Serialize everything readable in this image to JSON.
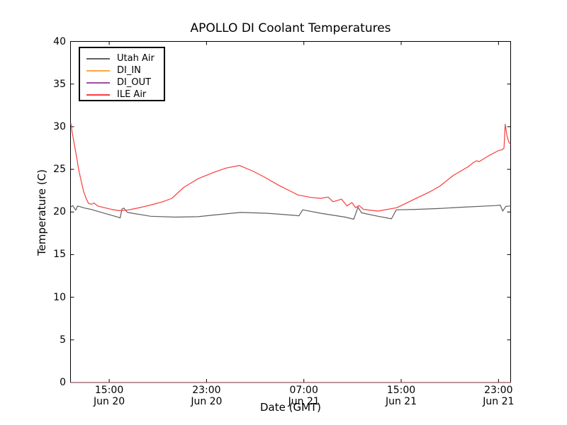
{
  "chart_data": {
    "type": "line",
    "title": "APOLLO DI Coolant Temperatures",
    "xlabel": "Date (GMT)",
    "ylabel": "Temperature (C)",
    "x_unit": "hours since Jun 20 00:00 GMT",
    "x_range": [
      11.82,
      48.0
    ],
    "ylim": [
      0,
      40
    ],
    "grid": false,
    "legend_position": "upper left",
    "tick_direction": "in",
    "xticks": [
      {
        "t": 15,
        "line1": "15:00",
        "line2": "Jun 20"
      },
      {
        "t": 23,
        "line1": "23:00",
        "line2": "Jun 20"
      },
      {
        "t": 31,
        "line1": "07:00",
        "line2": "Jun 21"
      },
      {
        "t": 39,
        "line1": "15:00",
        "line2": "Jun 21"
      },
      {
        "t": 47,
        "line1": "23:00",
        "line2": "Jun 21"
      }
    ],
    "yticks": [
      {
        "value": 0,
        "label": "0"
      },
      {
        "value": 5,
        "label": "5"
      },
      {
        "value": 10,
        "label": "10"
      },
      {
        "value": 15,
        "label": "15"
      },
      {
        "value": 20,
        "label": "20"
      },
      {
        "value": 25,
        "label": "25"
      },
      {
        "value": 30,
        "label": "30"
      },
      {
        "value": 35,
        "label": "35"
      },
      {
        "value": 40,
        "label": "40"
      }
    ],
    "series": [
      {
        "name": "Utah Air",
        "color": "#606060",
        "points": [
          [
            11.85,
            20.6
          ],
          [
            12.0,
            20.75
          ],
          [
            12.25,
            20.2
          ],
          [
            12.4,
            20.7
          ],
          [
            13.0,
            20.45
          ],
          [
            13.5,
            20.3
          ],
          [
            14.6,
            19.85
          ],
          [
            15.6,
            19.45
          ],
          [
            15.9,
            19.3
          ],
          [
            16.05,
            20.35
          ],
          [
            16.2,
            20.45
          ],
          [
            16.5,
            19.95
          ],
          [
            18.4,
            19.5
          ],
          [
            20.4,
            19.4
          ],
          [
            22.3,
            19.45
          ],
          [
            24.0,
            19.7
          ],
          [
            25.8,
            19.95
          ],
          [
            28.0,
            19.85
          ],
          [
            30.3,
            19.6
          ],
          [
            30.6,
            19.55
          ],
          [
            30.9,
            20.25
          ],
          [
            32.4,
            19.85
          ],
          [
            34.4,
            19.4
          ],
          [
            35.1,
            19.15
          ],
          [
            35.45,
            20.55
          ],
          [
            35.75,
            19.9
          ],
          [
            37.1,
            19.5
          ],
          [
            38.2,
            19.2
          ],
          [
            38.6,
            20.25
          ],
          [
            40.2,
            20.3
          ],
          [
            42.1,
            20.4
          ],
          [
            43.9,
            20.55
          ],
          [
            46.8,
            20.75
          ],
          [
            47.15,
            20.8
          ],
          [
            47.35,
            20.1
          ],
          [
            47.6,
            20.65
          ],
          [
            47.97,
            20.7
          ]
        ]
      },
      {
        "name": "DI_IN",
        "color": "#ffa742",
        "overlay_opacity": 0.4,
        "points": [
          [
            11.82,
            0
          ],
          [
            48.0,
            0
          ]
        ]
      },
      {
        "name": "DI_OUT",
        "color": "#9b4fa0",
        "overlay_opacity": 0.45,
        "points": [
          [
            11.82,
            0
          ],
          [
            48.0,
            0
          ]
        ]
      },
      {
        "name": "ILE Air",
        "color": "#fa3c3c",
        "points": [
          [
            11.85,
            30.4
          ],
          [
            11.95,
            29.4
          ],
          [
            12.1,
            28.2
          ],
          [
            12.3,
            26.6
          ],
          [
            12.5,
            24.9
          ],
          [
            12.7,
            23.6
          ],
          [
            12.9,
            22.4
          ],
          [
            13.1,
            21.6
          ],
          [
            13.3,
            21.0
          ],
          [
            13.55,
            20.9
          ],
          [
            13.75,
            21.05
          ],
          [
            14.05,
            20.7
          ],
          [
            14.6,
            20.5
          ],
          [
            15.2,
            20.3
          ],
          [
            15.8,
            20.15
          ],
          [
            16.4,
            20.2
          ],
          [
            16.8,
            20.3
          ],
          [
            17.65,
            20.55
          ],
          [
            18.5,
            20.85
          ],
          [
            19.4,
            21.2
          ],
          [
            20.15,
            21.6
          ],
          [
            21.1,
            22.85
          ],
          [
            22.3,
            23.9
          ],
          [
            23.5,
            24.6
          ],
          [
            24.6,
            25.15
          ],
          [
            25.7,
            25.45
          ],
          [
            26.8,
            24.8
          ],
          [
            27.75,
            24.1
          ],
          [
            28.9,
            23.15
          ],
          [
            30.1,
            22.3
          ],
          [
            30.5,
            22.0
          ],
          [
            31.6,
            21.7
          ],
          [
            32.4,
            21.6
          ],
          [
            33.0,
            21.75
          ],
          [
            33.4,
            21.2
          ],
          [
            34.1,
            21.5
          ],
          [
            34.55,
            20.7
          ],
          [
            34.95,
            21.1
          ],
          [
            35.25,
            20.5
          ],
          [
            35.55,
            20.75
          ],
          [
            35.9,
            20.3
          ],
          [
            37.1,
            20.1
          ],
          [
            38.65,
            20.5
          ],
          [
            39.8,
            21.3
          ],
          [
            41.4,
            22.4
          ],
          [
            42.15,
            23.0
          ],
          [
            43.3,
            24.3
          ],
          [
            44.5,
            25.3
          ],
          [
            44.95,
            25.8
          ],
          [
            45.2,
            26.0
          ],
          [
            45.4,
            25.9
          ],
          [
            46.2,
            26.6
          ],
          [
            47.0,
            27.2
          ],
          [
            47.3,
            27.3
          ],
          [
            47.45,
            27.5
          ],
          [
            47.55,
            30.3
          ],
          [
            47.7,
            28.9
          ],
          [
            47.85,
            28.2
          ],
          [
            47.97,
            28.0
          ]
        ]
      }
    ]
  }
}
